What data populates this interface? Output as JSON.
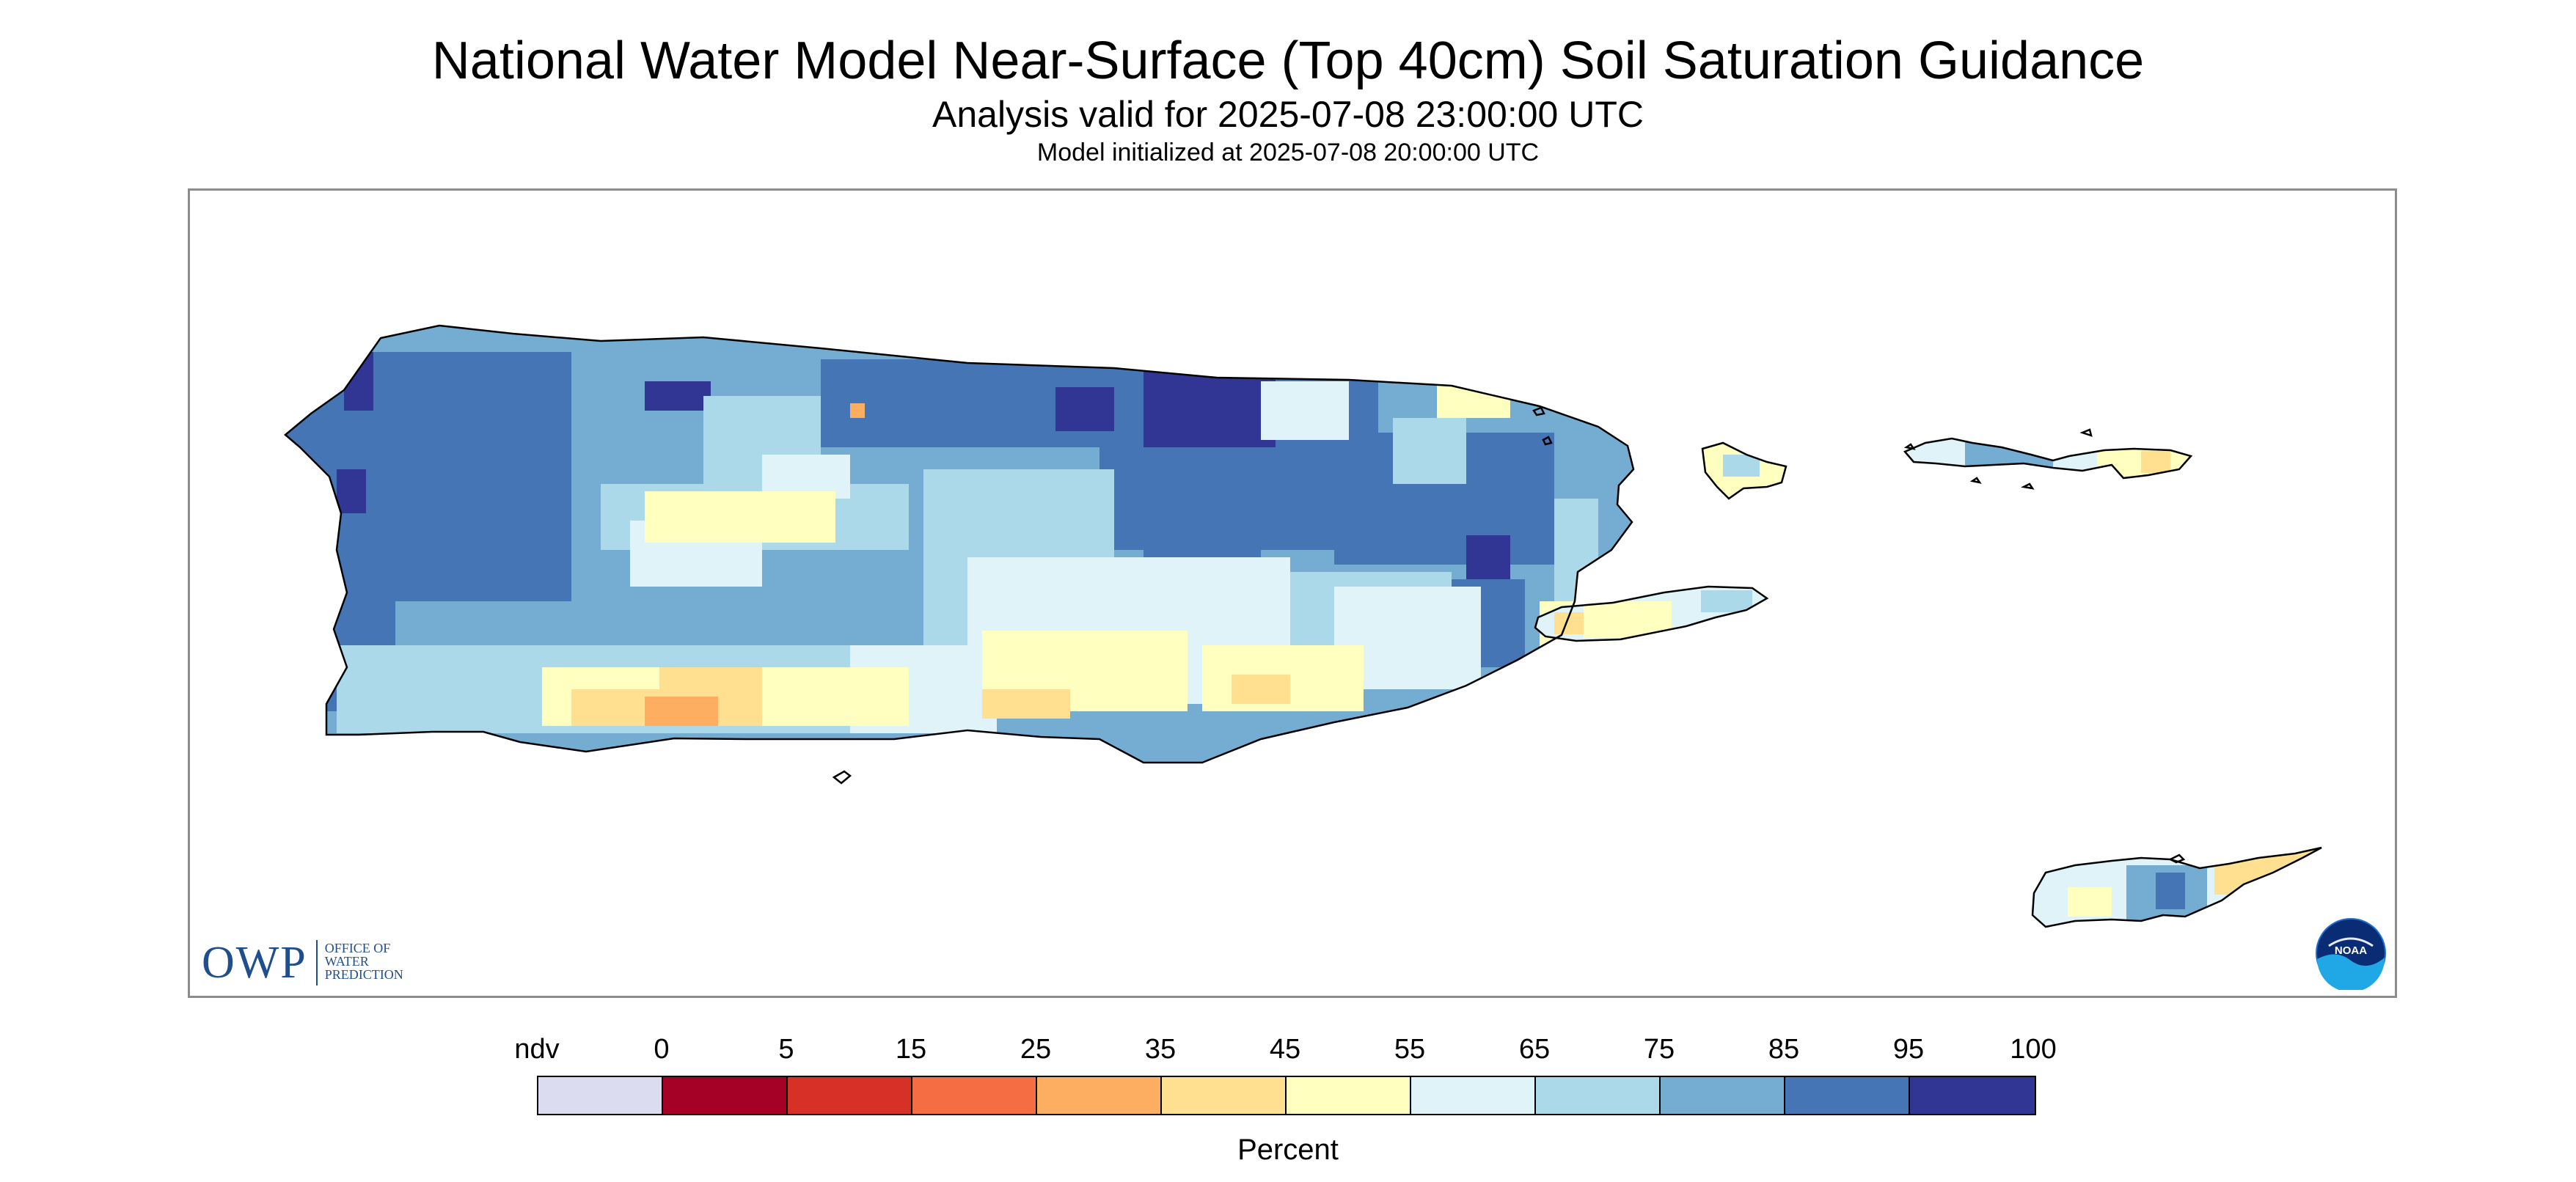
{
  "title": "National Water Model Near-Surface (Top 40cm) Soil Saturation Guidance",
  "subtitle": "Analysis valid for 2025-07-08 23:00:00 UTC",
  "init_line": "Model initialized at 2025-07-08 20:00:00 UTC",
  "logos": {
    "owp_mark": "OWP",
    "owp_text": [
      "OFFICE OF",
      "WATER",
      "PREDICTION"
    ],
    "noaa_text": "NOAA"
  },
  "legend": {
    "tick_labels": [
      "ndv",
      "0",
      "5",
      "15",
      "25",
      "35",
      "45",
      "55",
      "65",
      "75",
      "85",
      "95",
      "100"
    ],
    "colors": [
      "#dcdcf0",
      "#a50026",
      "#d73027",
      "#f46d43",
      "#fdae61",
      "#fee090",
      "#ffffbf",
      "#e0f3f8",
      "#abd9e9",
      "#74add1",
      "#4575b4",
      "#313695"
    ],
    "unit_label": "Percent"
  },
  "map": {
    "region": "Puerto Rico and U.S. Virgin Islands",
    "islands": [
      "puerto-rico",
      "vieques",
      "culebra",
      "st-thomas-st-john",
      "st-croix",
      "mona-desecheo"
    ]
  }
}
